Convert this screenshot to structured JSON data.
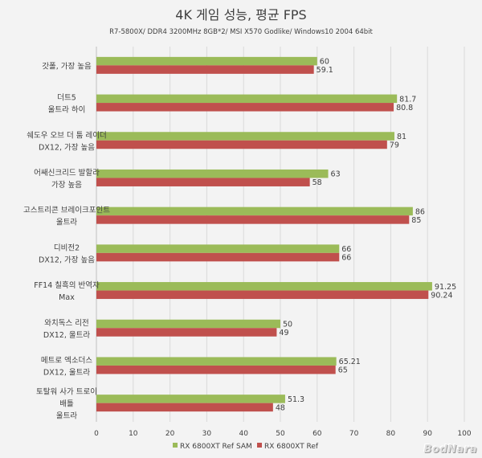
{
  "chart_data": {
    "type": "bar",
    "orientation": "horizontal",
    "title": "4K 게임 성능, 평균 FPS",
    "subtitle": "R7-5800X/ DDR4 3200MHz 8GB*2/ MSI X570 Godlike/ Windows10 2004 64bit",
    "categories": [
      [
        "갓폴, 가장 높음"
      ],
      [
        "더트5",
        "울트라 하이"
      ],
      [
        "쉐도우 오브 더 툼 레이더",
        "DX12, 가장 높음"
      ],
      [
        "어쌔신크리드 발할라",
        "가장 높음"
      ],
      [
        "고스트리콘 브레이크포인트",
        "울트라"
      ],
      [
        "디비전2",
        "DX12, 가장 높음"
      ],
      [
        "FF14 칠흑의 반역자",
        "Max"
      ],
      [
        "와치독스 리전",
        "DX12, 울트라"
      ],
      [
        "메트로 엑소더스",
        "DX12, 울트라"
      ],
      [
        "토탈워 사가 트로이",
        "배틀",
        "울트라"
      ]
    ],
    "series": [
      {
        "name": "RX 6800XT Ref SAM",
        "color": "#9bbb59",
        "values": [
          60,
          81.7,
          81,
          63,
          86,
          66,
          91.25,
          50,
          65.21,
          51.3
        ]
      },
      {
        "name": "RX 6800XT Ref",
        "color": "#c0504d",
        "values": [
          59.1,
          80.8,
          79,
          58,
          85,
          66,
          90.24,
          49,
          65,
          48
        ]
      }
    ],
    "xlim": [
      0,
      100
    ],
    "xticks": [
      0,
      10,
      20,
      30,
      40,
      50,
      60,
      70,
      80,
      90,
      100
    ],
    "grid": true,
    "legend": "bottom"
  },
  "watermark": "BodNara"
}
